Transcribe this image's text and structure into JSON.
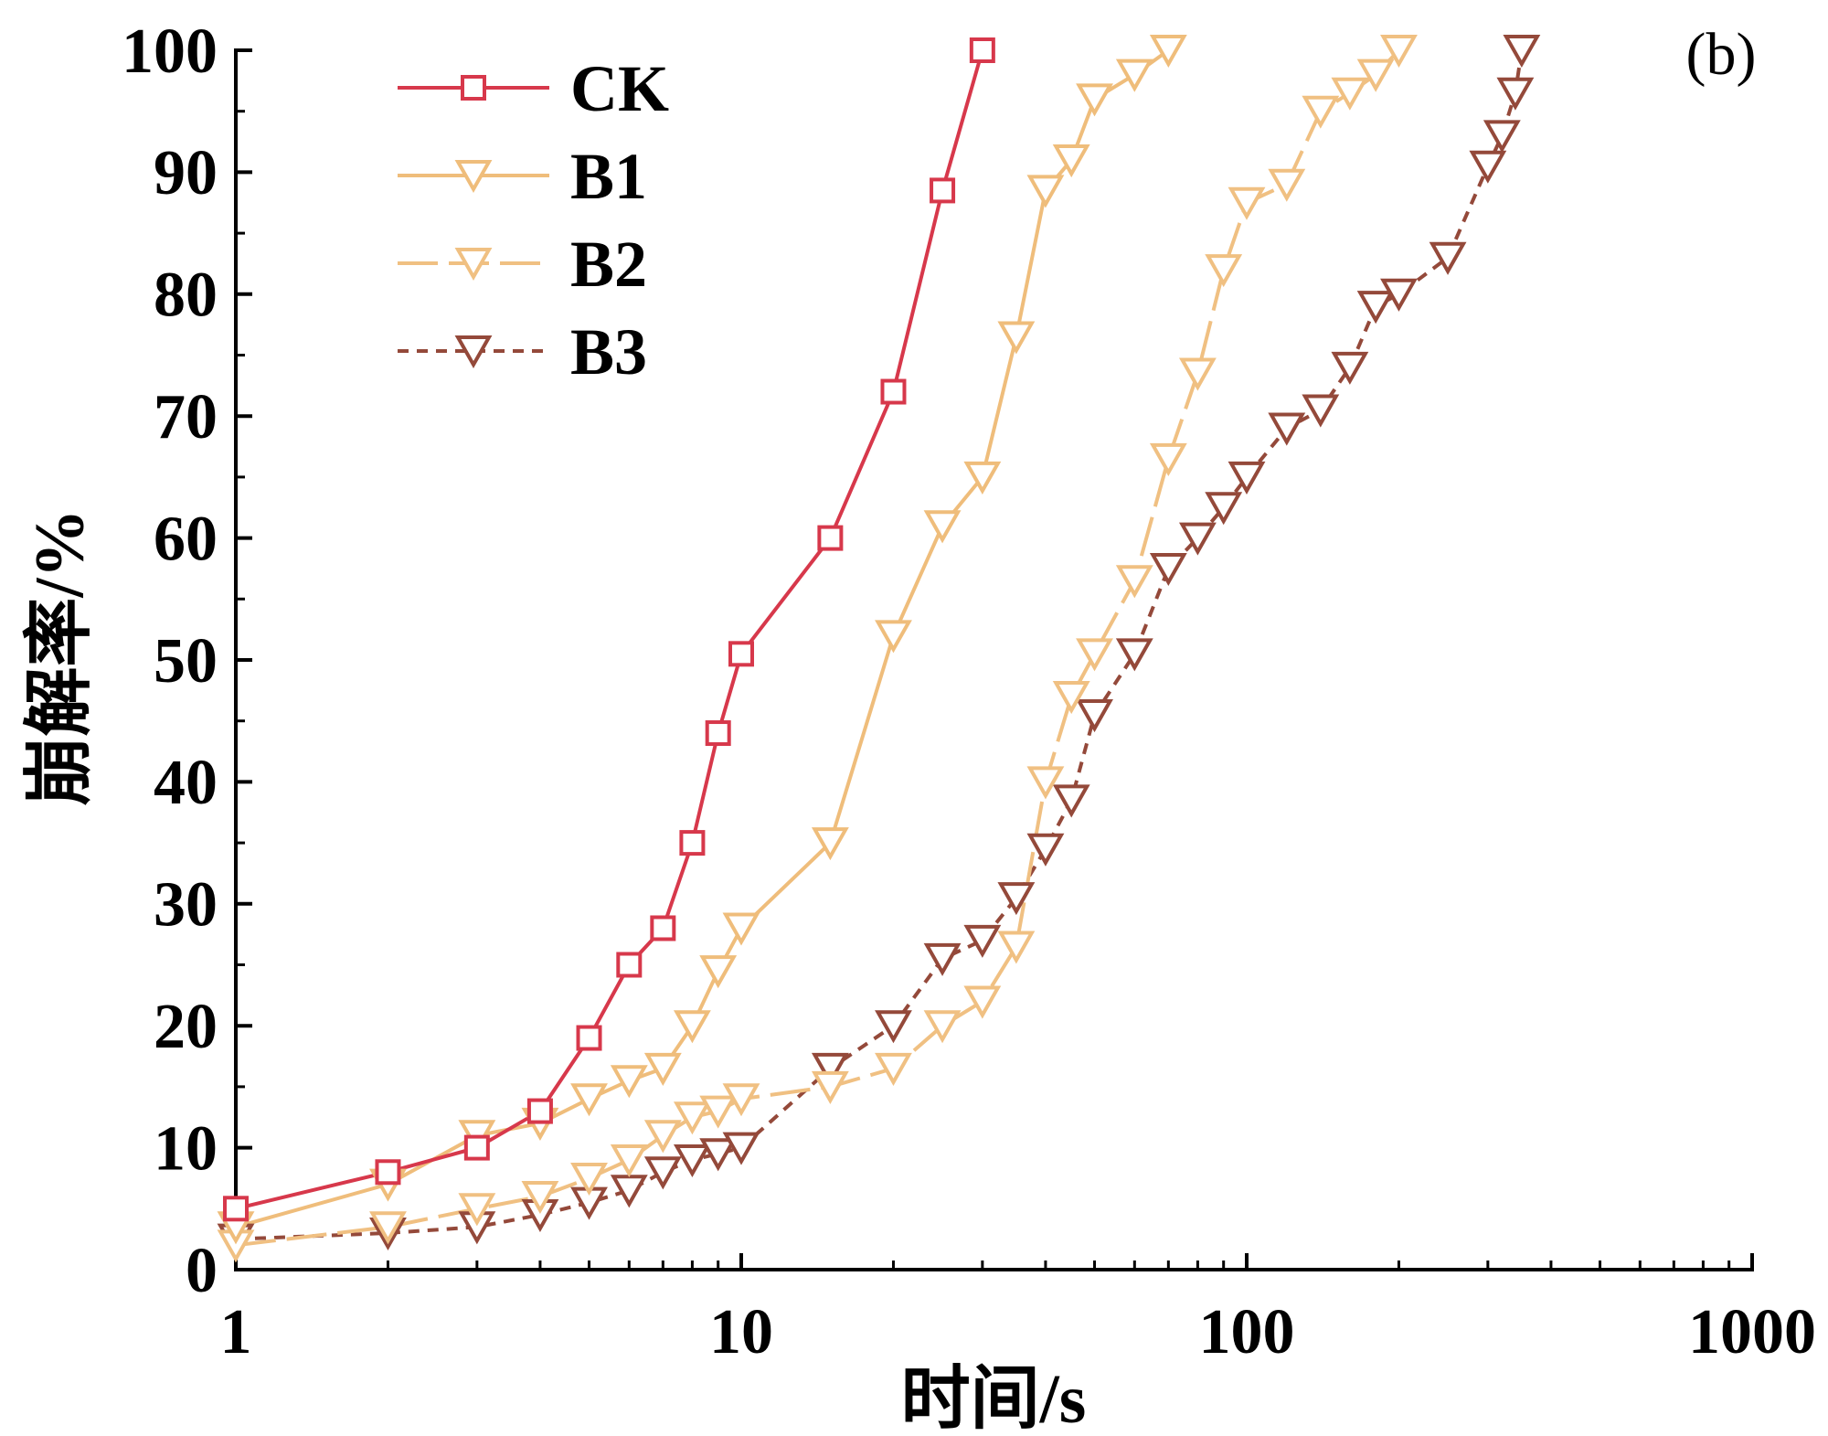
{
  "chart_data": {
    "type": "line",
    "title": "",
    "panel_label": "(b)",
    "xlabel": "时间/s",
    "ylabel": "崩解率/%",
    "xlim": [
      1,
      1000
    ],
    "ylim": [
      0,
      100
    ],
    "x_ticks": [
      1,
      10,
      100,
      1000
    ],
    "x_tick_labels": [
      "1",
      "10",
      "100",
      "1000"
    ],
    "y_ticks": [
      0,
      10,
      20,
      30,
      40,
      50,
      60,
      70,
      80,
      90,
      100
    ],
    "y_tick_labels": [
      "0",
      "10",
      "20",
      "30",
      "40",
      "50",
      "60",
      "70",
      "80",
      "90",
      "100"
    ],
    "legend_position": "top-left",
    "series": [
      {
        "name": "CK",
        "color": "#d7384b",
        "x": [
          1,
          2,
          3,
          4,
          5,
          6,
          7,
          8,
          9,
          10,
          15,
          20,
          25,
          30
        ],
        "y": [
          5,
          8,
          10,
          13,
          19,
          25,
          28,
          35,
          44,
          50.5,
          60,
          72,
          88.5,
          100
        ]
      },
      {
        "name": "B1",
        "color": "#efbd7b",
        "x": [
          1,
          2,
          3,
          4,
          5,
          6,
          7,
          8,
          9,
          10,
          15,
          20,
          25,
          30,
          35,
          40,
          45,
          50,
          60,
          70
        ],
        "y": [
          3.5,
          7,
          11,
          12,
          14,
          15.5,
          16.5,
          20,
          24.5,
          28,
          35,
          52,
          61,
          65,
          76.5,
          88.5,
          91,
          96,
          98,
          100
        ]
      },
      {
        "name": "B2",
        "color": "#f0c082",
        "x": [
          1,
          2,
          3,
          4,
          5,
          6,
          7,
          8,
          9,
          10,
          15,
          20,
          25,
          30,
          35,
          40,
          45,
          50,
          60,
          70,
          80,
          90,
          100,
          120,
          140,
          160,
          180,
          200
        ],
        "y": [
          2,
          3.5,
          5,
          6,
          7.5,
          9,
          11,
          12.5,
          13,
          14,
          15,
          16.5,
          20,
          22,
          26.5,
          40,
          47,
          50.5,
          56.5,
          66.5,
          73.5,
          82,
          87.5,
          89,
          95,
          96.5,
          98,
          100
        ]
      },
      {
        "name": "B3",
        "color": "#94493a",
        "x": [
          1,
          2,
          3,
          4,
          5,
          6,
          7,
          8,
          9,
          10,
          15,
          20,
          25,
          30,
          35,
          40,
          45,
          50,
          60,
          70,
          80,
          90,
          100,
          120,
          140,
          160,
          180,
          200,
          250,
          300,
          320,
          340,
          350
        ],
        "y": [
          2.5,
          3,
          3.5,
          4.5,
          5.5,
          6.5,
          8,
          9,
          9.5,
          10,
          16.5,
          20,
          25.5,
          27,
          30.5,
          34.5,
          38.5,
          45.5,
          50.5,
          57.5,
          60,
          62.5,
          65,
          69,
          70.5,
          74,
          79,
          80,
          83,
          90.5,
          93,
          96.5,
          100
        ]
      }
    ]
  }
}
